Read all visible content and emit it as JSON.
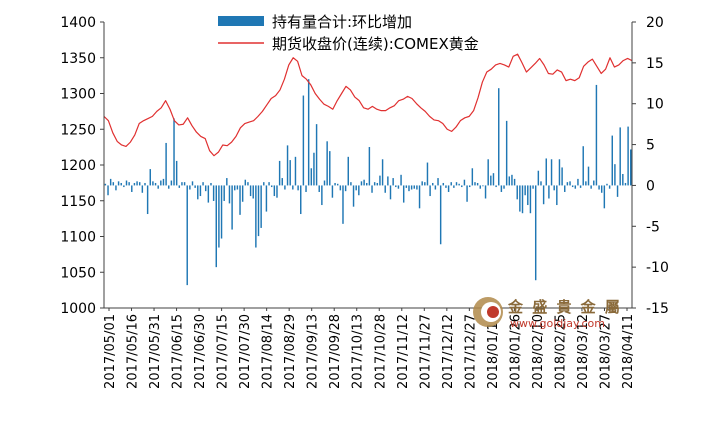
{
  "legend": {
    "bar_label": "持有量合计:环比增加",
    "line_label": "期货收盘价(连续):COMEX黄金"
  },
  "watermark": {
    "name": "金 盛 貴 金 屬",
    "url": "www.goldjay.com"
  },
  "colors": {
    "bar": "#1f77b4",
    "line": "#e03030",
    "axis": "#404040"
  },
  "chart_data": {
    "type": "bar+line",
    "left_axis": {
      "min": 1000,
      "max": 1400,
      "ticks": [
        "1000",
        "1050",
        "1100",
        "1150",
        "1200",
        "1250",
        "1300",
        "1350",
        "1400"
      ]
    },
    "right_axis": {
      "min": -15,
      "max": 20,
      "ticks": [
        "-15",
        "-10",
        "-5",
        "0",
        "5",
        "10",
        "15",
        "20"
      ]
    },
    "x_labels": [
      "2017/05/01",
      "2017/05/16",
      "2017/05/31",
      "2017/06/15",
      "2017/06/30",
      "2017/07/15",
      "2017/07/30",
      "2017/08/14",
      "2017/08/29",
      "2017/09/13",
      "2017/09/28",
      "2017/10/13",
      "2017/10/28",
      "2017/11/12",
      "2017/11/27",
      "2017/12/12",
      "2017/12/27",
      "2018/01/11",
      "2018/01/26",
      "2018/02/10",
      "2018/02/25",
      "2018/03/12",
      "2018/03/27",
      "2018/04/11"
    ],
    "line_series": {
      "name": "期货收盘价(连续):COMEX黄金",
      "axis": "left",
      "values": [
        1268,
        1262,
        1245,
        1233,
        1228,
        1226,
        1232,
        1242,
        1258,
        1262,
        1265,
        1268,
        1275,
        1280,
        1290,
        1278,
        1262,
        1256,
        1257,
        1266,
        1255,
        1246,
        1240,
        1237,
        1220,
        1213,
        1218,
        1228,
        1227,
        1232,
        1240,
        1252,
        1258,
        1260,
        1262,
        1268,
        1275,
        1284,
        1293,
        1297,
        1305,
        1320,
        1340,
        1350,
        1345,
        1325,
        1320,
        1312,
        1300,
        1292,
        1285,
        1282,
        1278,
        1290,
        1300,
        1310,
        1305,
        1295,
        1290,
        1280,
        1278,
        1282,
        1278,
        1276,
        1276,
        1280,
        1283,
        1290,
        1292,
        1296,
        1293,
        1286,
        1280,
        1275,
        1268,
        1263,
        1262,
        1258,
        1250,
        1247,
        1253,
        1262,
        1266,
        1268,
        1276,
        1294,
        1316,
        1330,
        1334,
        1340,
        1342,
        1340,
        1337,
        1352,
        1355,
        1343,
        1330,
        1336,
        1342,
        1349,
        1340,
        1328,
        1327,
        1333,
        1330,
        1318,
        1320,
        1318,
        1322,
        1338,
        1344,
        1348,
        1338,
        1328,
        1334,
        1350,
        1337,
        1340,
        1346,
        1349,
        1346
      ]
    },
    "bar_series": {
      "name": "持有量合计:环比增加",
      "axis": "right",
      "values": [
        0.2,
        -1.2,
        0.8,
        0.4,
        -0.6,
        0.5,
        0.3,
        -0.2,
        0.6,
        0.4,
        -0.8,
        0.3,
        0.5,
        0.4,
        -0.9,
        0.3,
        -3.5,
        2,
        0.5,
        0.3,
        -0.4,
        0.6,
        0.8,
        5.2,
        -0.4,
        0.6,
        8.2,
        3,
        -0.3,
        0.4,
        0.4,
        -12.2,
        -0.5,
        0.5,
        -0.3,
        -1.7,
        -1.3,
        0.4,
        -0.7,
        -2.1,
        0.3,
        -1.9,
        -10,
        -7.6,
        -6.5,
        -1.9,
        0.9,
        -2.2,
        -5.4,
        -0.6,
        -0.5,
        -3.6,
        -2,
        0.7,
        0.4,
        -1.3,
        -1.6,
        -7.6,
        -6.2,
        -5.2,
        0.4,
        -3.2,
        0.4,
        -0.2,
        -1.3,
        -1.5,
        3,
        0.9,
        -0.5,
        4.9,
        3.1,
        -0.5,
        3.5,
        -0.6,
        -3.5,
        11,
        -0.8,
        13,
        2.1,
        4,
        7.5,
        -0.8,
        -2.4,
        0.6,
        5.4,
        4.2,
        -1.5,
        0.3,
        0.2,
        -0.6,
        -4.7,
        -0.7,
        3.5,
        0.4,
        -2.6,
        -0.6,
        -1.2,
        0.5,
        0.7,
        0.3,
        4.7,
        -0.9,
        0.4,
        0.3,
        1.2,
        3.2,
        -0.9,
        1.1,
        -1.7,
        0.9,
        -0.2,
        -0.4,
        1.3,
        -2.1,
        -0.3,
        -0.7,
        -0.5,
        -0.4,
        -0.5,
        -2.8,
        0.5,
        0.4,
        2.8,
        -1.3,
        0.3,
        -0.5,
        0.9,
        -7.2,
        0.3,
        -0.3,
        -0.8,
        0.4,
        -0.3,
        0.4,
        0.2,
        -0.2,
        0.7,
        -2,
        -0.2,
        2.1,
        0.4,
        0.3,
        -0.4,
        -0.1,
        -1.6,
        3.2,
        1.2,
        1.5,
        -0.2,
        11.9,
        -0.8,
        -0.4,
        7.9,
        1.1,
        1.3,
        0.8,
        -1.7,
        -3.2,
        -3.4,
        -1.2,
        -2.4,
        -3.4,
        -0.4,
        -11.6,
        1.8,
        0.5,
        -2.3,
        3.3,
        -1.6,
        3.2,
        -0.6,
        -2.4,
        3.2,
        2.2,
        -0.8,
        0.4,
        0.5,
        -0.2,
        -0.4,
        0.8,
        -0.3,
        4.8,
        0.5,
        2.3,
        -0.4,
        0.6,
        12.3,
        -0.5,
        -0.9,
        -2.8,
        0.2,
        -0.4,
        6.1,
        2.6,
        -1.4,
        7.1,
        1.4,
        0.3,
        7.2,
        4.4
      ]
    }
  }
}
